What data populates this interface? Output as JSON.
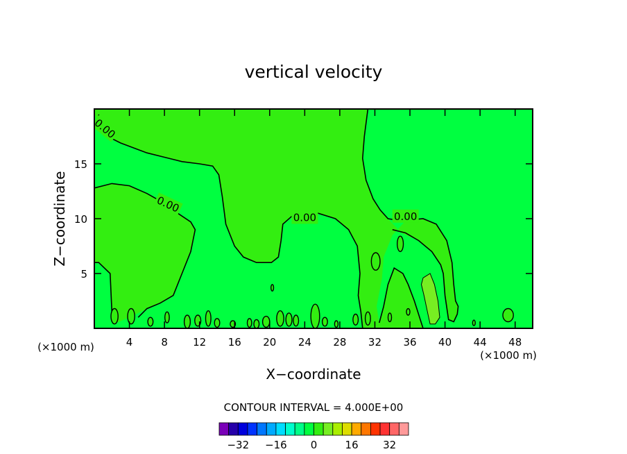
{
  "chart_data": {
    "type": "contour",
    "title": "vertical velocity",
    "xlabel": "X−coordinate",
    "ylabel": "Z−coordinate",
    "x_unit": "(×1000 m)",
    "y_unit": "(×1000 m)",
    "xlim": [
      0,
      50
    ],
    "ylim": [
      0,
      20
    ],
    "x_ticks": [
      4,
      8,
      12,
      16,
      20,
      24,
      28,
      32,
      36,
      40,
      44,
      48
    ],
    "y_ticks": [
      5,
      10,
      15
    ],
    "contour_label": "0.00",
    "contour_interval_text": "CONTOUR INTERVAL = 4.000E+00",
    "field_colors": {
      "background": "#00ff40",
      "positive": "#33ee11",
      "strong_positive": "#77ee22"
    },
    "colorbar": {
      "colors": [
        "#7a00b8",
        "#2600aa",
        "#0000dd",
        "#0033ff",
        "#0077ff",
        "#00aaff",
        "#00ddff",
        "#00ffcc",
        "#00ff88",
        "#00ff40",
        "#33ee11",
        "#77ee22",
        "#aaee00",
        "#dddd00",
        "#ffaa00",
        "#ff7700",
        "#ff3300",
        "#ff3333",
        "#ff6666",
        "#ff9999"
      ],
      "tick_labels": [
        "−32",
        "−16",
        "0",
        "16",
        "32"
      ],
      "tick_values": [
        -32,
        -16,
        0,
        16,
        32
      ],
      "min": -40,
      "max": 40
    },
    "positive_regions": [
      [
        [
          0,
          12.8
        ],
        [
          2,
          13.2
        ],
        [
          4,
          13
        ],
        [
          6,
          12.3
        ],
        [
          8,
          11.4
        ],
        [
          9.5,
          10.5
        ],
        [
          11,
          9.7
        ],
        [
          11.5,
          9
        ],
        [
          11,
          7
        ],
        [
          10,
          5
        ],
        [
          9,
          3
        ],
        [
          7.5,
          2.3
        ],
        [
          6,
          1.8
        ],
        [
          4,
          1
        ],
        [
          2.2,
          0.4
        ],
        [
          2,
          1.5
        ],
        [
          1.8,
          5
        ],
        [
          0.5,
          6
        ],
        [
          0,
          6
        ]
      ],
      [
        [
          0,
          19.7
        ],
        [
          0.5,
          18.2
        ],
        [
          1.5,
          17.5
        ],
        [
          3,
          16.9
        ],
        [
          6,
          16
        ],
        [
          8,
          15.6
        ],
        [
          10,
          15.2
        ],
        [
          12,
          15
        ],
        [
          13.5,
          14.8
        ],
        [
          14.2,
          14
        ],
        [
          14.6,
          12
        ],
        [
          15,
          9.5
        ],
        [
          16,
          7.5
        ],
        [
          17,
          6.5
        ],
        [
          18.5,
          6
        ],
        [
          20.2,
          6
        ],
        [
          21,
          6.5
        ],
        [
          21.3,
          8
        ],
        [
          21.5,
          9.5
        ],
        [
          22.5,
          10.2
        ],
        [
          24,
          10.5
        ],
        [
          25.5,
          10.5
        ],
        [
          27.5,
          10
        ],
        [
          29,
          9
        ],
        [
          30,
          7.5
        ],
        [
          30.3,
          5
        ],
        [
          30.1,
          3
        ],
        [
          30.4,
          1.5
        ],
        [
          30.6,
          0
        ],
        [
          37.5,
          0
        ],
        [
          36.5,
          2.5
        ],
        [
          35.8,
          4
        ],
        [
          35.2,
          5
        ],
        [
          34.2,
          5.5
        ],
        [
          33.5,
          4
        ],
        [
          33,
          2
        ],
        [
          32.5,
          0.5
        ],
        [
          32.2,
          2
        ],
        [
          32.8,
          4.5
        ],
        [
          33,
          6.5
        ],
        [
          34,
          8.5
        ],
        [
          35.5,
          9.8
        ],
        [
          37.5,
          10
        ],
        [
          39,
          9.5
        ],
        [
          40.2,
          8
        ],
        [
          40.8,
          6
        ],
        [
          41,
          4
        ],
        [
          41.2,
          2.5
        ],
        [
          41.5,
          2
        ],
        [
          41.4,
          1.3
        ],
        [
          41,
          0.6
        ],
        [
          40.4,
          0.8
        ],
        [
          40,
          3
        ],
        [
          39.8,
          5
        ],
        [
          39.5,
          5.8
        ],
        [
          38.5,
          7
        ],
        [
          37,
          8
        ],
        [
          35,
          8.7
        ],
        [
          33.5,
          10
        ],
        [
          32.6,
          10.8
        ],
        [
          31.8,
          11.8
        ],
        [
          31,
          13.5
        ],
        [
          30.6,
          15.5
        ],
        [
          30.8,
          17.5
        ],
        [
          31.2,
          20
        ],
        [
          0,
          20
        ]
      ]
    ],
    "zero_contours": [
      [
        [
          0.5,
          19.5
        ],
        [
          0.7,
          18.5
        ],
        [
          1.5,
          17.5
        ],
        [
          3,
          16.9
        ],
        [
          6,
          16
        ],
        [
          8,
          15.6
        ],
        [
          10,
          15.2
        ],
        [
          12,
          15
        ],
        [
          13.5,
          14.8
        ],
        [
          14.2,
          14
        ],
        [
          14.6,
          12
        ],
        [
          15,
          9.5
        ],
        [
          16,
          7.5
        ],
        [
          17,
          6.5
        ],
        [
          18.5,
          6
        ],
        [
          20.2,
          6
        ],
        [
          21,
          6.5
        ],
        [
          21.3,
          8
        ],
        [
          21.5,
          9.5
        ],
        [
          22.5,
          10.2
        ],
        [
          24,
          10.5
        ],
        [
          25.5,
          10.5
        ],
        [
          27.5,
          10
        ],
        [
          29,
          9
        ],
        [
          30,
          7.5
        ],
        [
          30.3,
          5
        ],
        [
          30.1,
          3
        ],
        [
          30.4,
          1.5
        ],
        [
          30.6,
          0
        ]
      ],
      [
        [
          0,
          12.8
        ],
        [
          2,
          13.2
        ],
        [
          4,
          13
        ],
        [
          6,
          12.3
        ],
        [
          8,
          11.4
        ],
        [
          9.5,
          10.5
        ],
        [
          11,
          9.7
        ],
        [
          11.5,
          9
        ],
        [
          11,
          7
        ],
        [
          10,
          5
        ],
        [
          9,
          3
        ],
        [
          7.5,
          2.3
        ],
        [
          6,
          1.8
        ],
        [
          5,
          1
        ]
      ],
      [
        [
          31.2,
          20
        ],
        [
          30.8,
          17.5
        ],
        [
          30.6,
          15.5
        ],
        [
          31,
          13.5
        ],
        [
          31.8,
          11.8
        ],
        [
          32.6,
          10.8
        ],
        [
          33.5,
          10
        ],
        [
          35,
          9.8
        ],
        [
          37.5,
          10
        ],
        [
          39,
          9.5
        ],
        [
          40.2,
          8
        ],
        [
          40.8,
          6
        ],
        [
          41,
          4
        ],
        [
          41.2,
          2.5
        ],
        [
          41.5,
          2
        ],
        [
          41.4,
          1.3
        ],
        [
          41,
          0.6
        ],
        [
          40.4,
          0.8
        ],
        [
          40,
          3
        ],
        [
          39.8,
          5
        ],
        [
          39.5,
          5.8
        ],
        [
          38.5,
          7
        ],
        [
          37,
          8
        ],
        [
          35.5,
          8.7
        ],
        [
          34,
          9
        ]
      ],
      [
        [
          37.5,
          0
        ],
        [
          36.5,
          2.5
        ],
        [
          35.8,
          4
        ],
        [
          35.2,
          5
        ],
        [
          34.2,
          5.5
        ],
        [
          33.5,
          4
        ],
        [
          33,
          2
        ],
        [
          32.5,
          0.5
        ]
      ],
      [
        [
          2.2,
          0.4
        ],
        [
          2,
          1.5
        ],
        [
          1.8,
          5
        ],
        [
          0.5,
          6
        ],
        [
          0,
          6
        ]
      ]
    ],
    "strong_region": [
      [
        37.5,
        4.6
      ],
      [
        38.3,
        5
      ],
      [
        38.8,
        4
      ],
      [
        39.2,
        2.5
      ],
      [
        39.4,
        1
      ],
      [
        38.9,
        0.4
      ],
      [
        38.3,
        0.4
      ],
      [
        38,
        1.5
      ],
      [
        37.6,
        3
      ],
      [
        37.3,
        4
      ]
    ],
    "small_loops": [
      {
        "c": [
          32.1,
          6.1
        ],
        "r": [
          0.5,
          0.8
        ]
      },
      {
        "c": [
          34.9,
          7.7
        ],
        "r": [
          0.35,
          0.7
        ]
      },
      {
        "c": [
          25.2,
          1.1
        ],
        "r": [
          0.5,
          1.1
        ]
      },
      {
        "c": [
          20.3,
          3.7
        ],
        "r": [
          0.15,
          0.3
        ]
      },
      {
        "c": [
          47.2,
          1.2
        ],
        "r": [
          0.6,
          0.6
        ]
      },
      {
        "c": [
          2.3,
          1.1
        ],
        "r": [
          0.4,
          0.7
        ]
      },
      {
        "c": [
          4.2,
          1.1
        ],
        "r": [
          0.4,
          0.7
        ]
      },
      {
        "c": [
          6.4,
          0.6
        ],
        "r": [
          0.3,
          0.4
        ]
      },
      {
        "c": [
          8.3,
          1.0
        ],
        "r": [
          0.25,
          0.5
        ]
      },
      {
        "c": [
          10.6,
          0.6
        ],
        "r": [
          0.35,
          0.6
        ]
      },
      {
        "c": [
          11.8,
          0.7
        ],
        "r": [
          0.35,
          0.5
        ]
      },
      {
        "c": [
          13.0,
          0.9
        ],
        "r": [
          0.3,
          0.7
        ]
      },
      {
        "c": [
          14.0,
          0.5
        ],
        "r": [
          0.3,
          0.4
        ]
      },
      {
        "c": [
          15.8,
          0.4
        ],
        "r": [
          0.3,
          0.3
        ]
      },
      {
        "c": [
          17.7,
          0.5
        ],
        "r": [
          0.25,
          0.4
        ]
      },
      {
        "c": [
          18.5,
          0.4
        ],
        "r": [
          0.3,
          0.4
        ]
      },
      {
        "c": [
          19.6,
          0.6
        ],
        "r": [
          0.4,
          0.5
        ]
      },
      {
        "c": [
          21.2,
          0.9
        ],
        "r": [
          0.4,
          0.7
        ]
      },
      {
        "c": [
          22.2,
          0.8
        ],
        "r": [
          0.35,
          0.6
        ]
      },
      {
        "c": [
          23.0,
          0.7
        ],
        "r": [
          0.3,
          0.5
        ]
      },
      {
        "c": [
          26.3,
          0.6
        ],
        "r": [
          0.3,
          0.4
        ]
      },
      {
        "c": [
          27.6,
          0.4
        ],
        "r": [
          0.2,
          0.3
        ]
      },
      {
        "c": [
          29.8,
          0.8
        ],
        "r": [
          0.3,
          0.5
        ]
      },
      {
        "c": [
          31.2,
          0.9
        ],
        "r": [
          0.3,
          0.6
        ]
      },
      {
        "c": [
          33.7,
          1.0
        ],
        "r": [
          0.2,
          0.4
        ]
      },
      {
        "c": [
          35.8,
          1.5
        ],
        "r": [
          0.2,
          0.3
        ]
      },
      {
        "c": [
          43.3,
          0.5
        ],
        "r": [
          0.15,
          0.25
        ]
      }
    ],
    "contour_label_positions": [
      {
        "x": 1.2,
        "y": 18.2,
        "angle": 40
      },
      {
        "x": 8.4,
        "y": 11.3,
        "angle": 25
      },
      {
        "x": 24.0,
        "y": 10.1,
        "angle": 0
      },
      {
        "x": 35.5,
        "y": 10.2,
        "angle": 0
      }
    ]
  }
}
